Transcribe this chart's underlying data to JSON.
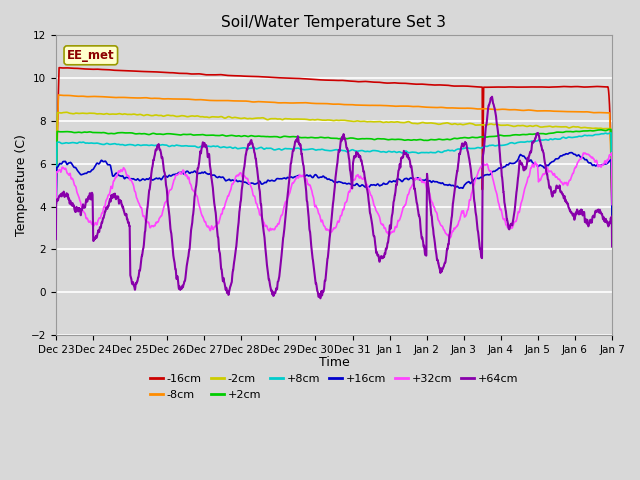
{
  "title": "Soil/Water Temperature Set 3",
  "xlabel": "Time",
  "ylabel": "Temperature (C)",
  "ylim": [
    -2,
    12
  ],
  "yticks": [
    -2,
    0,
    2,
    4,
    6,
    8,
    10,
    12
  ],
  "date_labels": [
    "Dec 23",
    "Dec 24",
    "Dec 25",
    "Dec 26",
    "Dec 27",
    "Dec 28",
    "Dec 29",
    "Dec 30",
    "Dec 31",
    "Jan 1",
    "Jan 2",
    "Jan 3",
    "Jan 4",
    "Jan 5",
    "Jan 6",
    "Jan 7"
  ],
  "annotation_label": "EE_met",
  "series_colors": {
    "-16cm": "#cc0000",
    "-8cm": "#ff8c00",
    "-2cm": "#cccc00",
    "+2cm": "#00cc00",
    "+8cm": "#00cccc",
    "+16cm": "#0000cc",
    "+32cm": "#ff44ff",
    "+64cm": "#8800aa"
  },
  "background_color": "#d8d8d8",
  "grid_color": "#ffffff",
  "linewidth": 1.2
}
